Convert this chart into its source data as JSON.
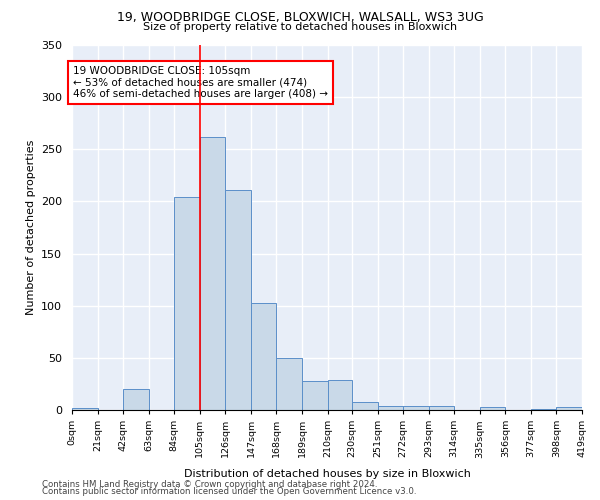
{
  "title1": "19, WOODBRIDGE CLOSE, BLOXWICH, WALSALL, WS3 3UG",
  "title2": "Size of property relative to detached houses in Bloxwich",
  "xlabel": "Distribution of detached houses by size in Bloxwich",
  "ylabel": "Number of detached properties",
  "bin_edges": [
    0,
    21,
    42,
    63,
    84,
    105,
    126,
    147,
    168,
    189,
    210,
    230,
    251,
    272,
    293,
    314,
    335,
    356,
    377,
    398,
    419
  ],
  "bin_heights": [
    2,
    0,
    20,
    0,
    204,
    262,
    211,
    103,
    50,
    28,
    29,
    8,
    4,
    4,
    4,
    0,
    3,
    0,
    1,
    3
  ],
  "bar_color": "#c9d9e8",
  "bar_edge_color": "#5b8fc9",
  "vline_x": 105,
  "vline_color": "red",
  "annotation_text": "19 WOODBRIDGE CLOSE: 105sqm\n← 53% of detached houses are smaller (474)\n46% of semi-detached houses are larger (408) →",
  "annotation_box_color": "white",
  "annotation_box_edge": "red",
  "ylim": [
    0,
    350
  ],
  "tick_labels": [
    "0sqm",
    "21sqm",
    "42sqm",
    "63sqm",
    "84sqm",
    "105sqm",
    "126sqm",
    "147sqm",
    "168sqm",
    "189sqm",
    "210sqm",
    "230sqm",
    "251sqm",
    "272sqm",
    "293sqm",
    "314sqm",
    "335sqm",
    "356sqm",
    "377sqm",
    "398sqm",
    "419sqm"
  ],
  "background_color": "#e8eef8",
  "grid_color": "white",
  "footer1": "Contains HM Land Registry data © Crown copyright and database right 2024.",
  "footer2": "Contains public sector information licensed under the Open Government Licence v3.0."
}
